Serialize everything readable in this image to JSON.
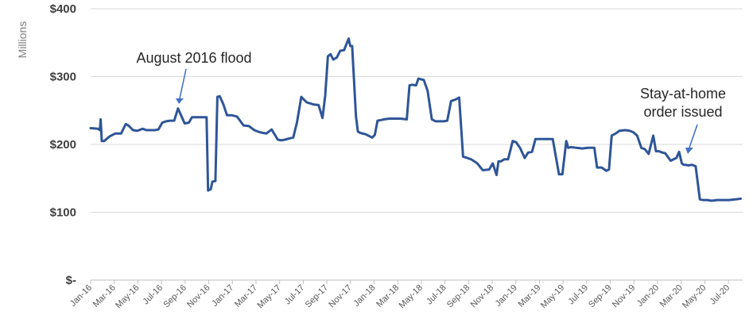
{
  "chart_data": {
    "type": "line",
    "title": "",
    "xlabel": "",
    "ylabel": "Millions",
    "ylim": [
      0,
      400
    ],
    "yticks": [
      {
        "value": 0,
        "label": "$-"
      },
      {
        "value": 100,
        "label": "$100"
      },
      {
        "value": 200,
        "label": "$200"
      },
      {
        "value": 300,
        "label": "$300"
      },
      {
        "value": 400,
        "label": "$400"
      }
    ],
    "xticks": [
      "Jan-16",
      "Mar-16",
      "May-16",
      "Jul-16",
      "Sep-16",
      "Nov-16",
      "Jan-17",
      "Mar-17",
      "May-17",
      "Jul-17",
      "Sep-17",
      "Nov-17",
      "Jan-18",
      "Mar-18",
      "May-18",
      "Jul-18",
      "Sep-18",
      "Nov-18",
      "Jan-19",
      "Mar-19",
      "May-19",
      "Jul-19",
      "Sep-19",
      "Nov-19",
      "Jan-20",
      "Mar-20",
      "May-20",
      "Jul-20"
    ],
    "grid": true,
    "line_color": "#2f5597",
    "series": [
      {
        "x": [
          "2016-01-01",
          "2016-01-20",
          "2016-01-25",
          "2016-01-27",
          "2016-01-30",
          "2016-02-05",
          "2016-02-20",
          "2016-03-05",
          "2016-03-20",
          "2016-04-01",
          "2016-04-08",
          "2016-04-20",
          "2016-05-01",
          "2016-05-15",
          "2016-05-25",
          "2016-06-05",
          "2016-06-15",
          "2016-06-25",
          "2016-07-05",
          "2016-07-15",
          "2016-07-25",
          "2016-08-05",
          "2016-08-15",
          "2016-08-22",
          "2016-09-01",
          "2016-09-12",
          "2016-09-20",
          "2016-09-28",
          "2016-10-05",
          "2016-10-20",
          "2016-10-28",
          "2016-11-01",
          "2016-11-08",
          "2016-11-12",
          "2016-11-20",
          "2016-11-25",
          "2016-12-01",
          "2016-12-10",
          "2016-12-20",
          "2017-01-01",
          "2017-01-15",
          "2017-02-01",
          "2017-02-15",
          "2017-03-01",
          "2017-03-15",
          "2017-04-01",
          "2017-04-15",
          "2017-05-01",
          "2017-05-10",
          "2017-05-20",
          "2017-06-01",
          "2017-06-10",
          "2017-06-20",
          "2017-07-01",
          "2017-07-15",
          "2017-08-01",
          "2017-08-15",
          "2017-08-25",
          "2017-09-01",
          "2017-09-08",
          "2017-09-15",
          "2017-09-22",
          "2017-10-01",
          "2017-10-10",
          "2017-10-20",
          "2017-11-01",
          "2017-11-05",
          "2017-11-10",
          "2017-11-20",
          "2017-11-25",
          "2017-12-01",
          "2017-12-15",
          "2018-01-01",
          "2018-01-08",
          "2018-01-15",
          "2018-01-25",
          "2018-02-01",
          "2018-02-15",
          "2018-03-01",
          "2018-03-15",
          "2018-04-01",
          "2018-04-08",
          "2018-04-15",
          "2018-04-25",
          "2018-05-01",
          "2018-05-15",
          "2018-05-25",
          "2018-06-05",
          "2018-06-15",
          "2018-06-25",
          "2018-07-05",
          "2018-07-15",
          "2018-07-25",
          "2018-08-05",
          "2018-08-15",
          "2018-08-25",
          "2018-09-05",
          "2018-09-15",
          "2018-10-01",
          "2018-10-15",
          "2018-11-01",
          "2018-11-10",
          "2018-11-20",
          "2018-11-25",
          "2018-12-01",
          "2018-12-10",
          "2018-12-20",
          "2019-01-01",
          "2019-01-10",
          "2019-01-20",
          "2019-02-01",
          "2019-02-10",
          "2019-02-20",
          "2019-03-01",
          "2019-03-15",
          "2019-04-01",
          "2019-04-15",
          "2019-05-01",
          "2019-05-10",
          "2019-05-20",
          "2019-05-25",
          "2019-06-01",
          "2019-06-15",
          "2019-07-01",
          "2019-07-15",
          "2019-08-01",
          "2019-08-08",
          "2019-08-20",
          "2019-09-01",
          "2019-09-08",
          "2019-09-15",
          "2019-09-25",
          "2019-10-05",
          "2019-10-20",
          "2019-11-01",
          "2019-11-10",
          "2019-11-20",
          "2019-12-01",
          "2019-12-10",
          "2019-12-20",
          "2020-01-01",
          "2020-01-08",
          "2020-01-15",
          "2020-01-25",
          "2020-02-01",
          "2020-02-15",
          "2020-03-01",
          "2020-03-08",
          "2020-03-15",
          "2020-03-20",
          "2020-03-25",
          "2020-04-01",
          "2020-04-10",
          "2020-04-20",
          "2020-05-01",
          "2020-05-10",
          "2020-05-20",
          "2020-06-01",
          "2020-06-15",
          "2020-07-01",
          "2020-07-15",
          "2020-08-01",
          "2020-08-15"
        ],
        "values": [
          224,
          223,
          221,
          237,
          205,
          205,
          212,
          216,
          216,
          230,
          228,
          221,
          220,
          223,
          221,
          221,
          221,
          222,
          232,
          234,
          235,
          235,
          253,
          244,
          231,
          232,
          240,
          240,
          240,
          240,
          240,
          132,
          134,
          145,
          146,
          270,
          271,
          260,
          243,
          243,
          241,
          228,
          227,
          221,
          218,
          216,
          222,
          207,
          206,
          207,
          209,
          210,
          233,
          270,
          262,
          259,
          258,
          239,
          272,
          330,
          333,
          325,
          328,
          338,
          339,
          356,
          345,
          345,
          241,
          219,
          217,
          215,
          210,
          214,
          235,
          236,
          237,
          238,
          238,
          238,
          237,
          287,
          288,
          287,
          297,
          295,
          279,
          237,
          234,
          234,
          234,
          235,
          264,
          266,
          269,
          182,
          180,
          178,
          172,
          162,
          163,
          172,
          155,
          175,
          175,
          178,
          178,
          205,
          203,
          195,
          180,
          188,
          189,
          208,
          208,
          208,
          208,
          156,
          156,
          205,
          195,
          196,
          195,
          194,
          195,
          195,
          166,
          166,
          161,
          163,
          213,
          216,
          220,
          221,
          220,
          218,
          213,
          195,
          193,
          186,
          213,
          190,
          190,
          188,
          187,
          176,
          180,
          189,
          172,
          170,
          170,
          169,
          170,
          168,
          119,
          118,
          118,
          117,
          118,
          118,
          118,
          119,
          120
        ]
      }
    ],
    "annotations": [
      {
        "text": "August 2016 flood",
        "x": "2016-08-20",
        "y": 253
      },
      {
        "text": "Stay-at-home",
        "x": "2020-03-20",
        "y": 189
      },
      {
        "text": "order issued",
        "x": "2020-03-20",
        "y": 189
      }
    ]
  }
}
